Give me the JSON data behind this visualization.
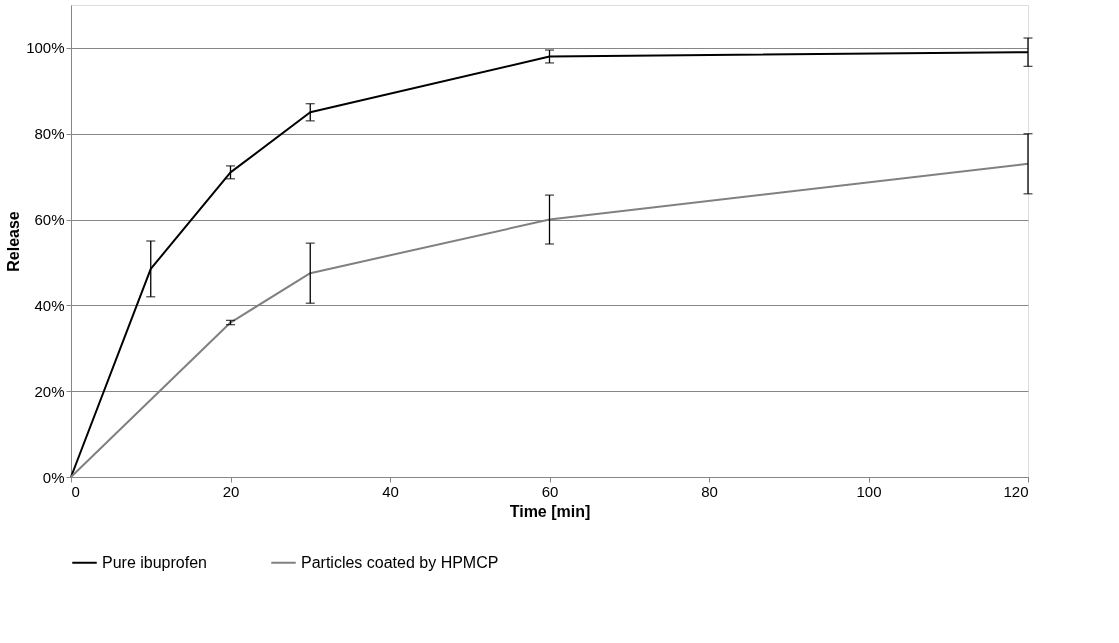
{
  "chart_data": {
    "type": "line",
    "xlabel": "Time [min]",
    "ylabel": "Release",
    "series": [
      {
        "name": "Pure ibuprofen",
        "color": "#000000",
        "x": [
          0,
          10,
          20,
          30,
          60,
          120
        ],
        "values": [
          0,
          48.5,
          71,
          85,
          98,
          99
        ],
        "errors": [
          null,
          6.5,
          1.5,
          2,
          1.5,
          3.3
        ]
      },
      {
        "name": "Particles coated by HPMCP",
        "color": "#808080",
        "x": [
          0,
          20,
          30,
          60,
          120
        ],
        "values": [
          0,
          36,
          47.5,
          60,
          73
        ],
        "errors": [
          null,
          0.5,
          7,
          5.7,
          7
        ]
      }
    ],
    "xlim": [
      0,
      120
    ],
    "xticks": [
      0,
      20,
      40,
      60,
      80,
      100,
      120
    ],
    "ylim": [
      0,
      110
    ],
    "yticks": [
      {
        "value": 0,
        "label": "0%"
      },
      {
        "value": 20,
        "label": "20%"
      },
      {
        "value": 40,
        "label": "40%"
      },
      {
        "value": 60,
        "label": "60%"
      },
      {
        "value": 80,
        "label": "80%"
      },
      {
        "value": 100,
        "label": "100%"
      }
    ],
    "grid": "y",
    "legend": "bottom",
    "marker": "none",
    "line_style": "solid"
  }
}
